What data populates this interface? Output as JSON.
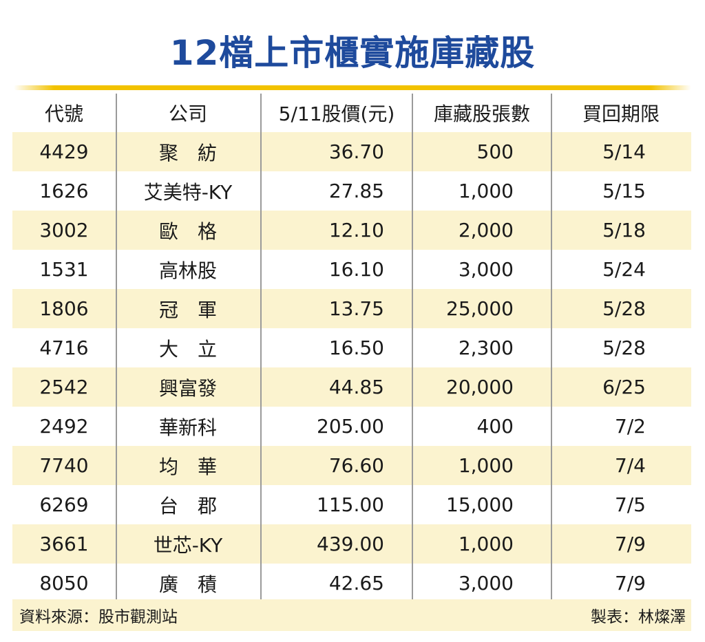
{
  "title": "12檔上市櫃實施庫藏股",
  "table": {
    "headers": [
      "代號",
      "公司",
      "5/11股價(元)",
      "庫藏股張數",
      "買回期限"
    ],
    "rows": [
      {
        "code": "4429",
        "company": "聚　紡",
        "price": "36.70",
        "shares": "500",
        "deadline": "5/14"
      },
      {
        "code": "1626",
        "company": "艾美特-KY",
        "price": "27.85",
        "shares": "1,000",
        "deadline": "5/15"
      },
      {
        "code": "3002",
        "company": "歐　格",
        "price": "12.10",
        "shares": "2,000",
        "deadline": "5/18"
      },
      {
        "code": "1531",
        "company": "高林股",
        "price": "16.10",
        "shares": "3,000",
        "deadline": "5/24"
      },
      {
        "code": "1806",
        "company": "冠　軍",
        "price": "13.75",
        "shares": "25,000",
        "deadline": "5/28"
      },
      {
        "code": "4716",
        "company": "大　立",
        "price": "16.50",
        "shares": "2,300",
        "deadline": "5/28"
      },
      {
        "code": "2542",
        "company": "興富發",
        "price": "44.85",
        "shares": "20,000",
        "deadline": "6/25"
      },
      {
        "code": "2492",
        "company": "華新科",
        "price": "205.00",
        "shares": "400",
        "deadline": "7/2"
      },
      {
        "code": "7740",
        "company": "均　華",
        "price": "76.60",
        "shares": "1,000",
        "deadline": "7/4"
      },
      {
        "code": "6269",
        "company": "台　郡",
        "price": "115.00",
        "shares": "15,000",
        "deadline": "7/5"
      },
      {
        "code": "3661",
        "company": "世芯-KY",
        "price": "439.00",
        "shares": "1,000",
        "deadline": "7/9"
      },
      {
        "code": "8050",
        "company": "廣　積",
        "price": "42.65",
        "shares": "3,000",
        "deadline": "7/9"
      }
    ]
  },
  "footer": {
    "source": "資料來源：股市觀測站",
    "maker": "製表：林燦澤"
  },
  "colors": {
    "title": "#1e4a9c",
    "rule": "#f2c200",
    "shade": "#fbf3cf"
  }
}
